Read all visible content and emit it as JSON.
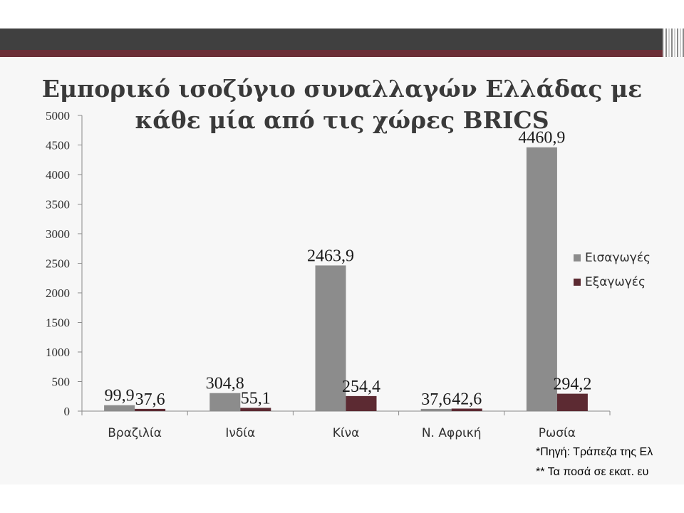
{
  "slide": {
    "title_line1": "Εμπορικό ισοζύγιο συναλλαγών  Ελλάδας με",
    "title_line2": "κάθε μία από τις χώρες BRICS",
    "footnote1": "*Πηγή: Τράπεζα της Ελ",
    "footnote2": "** Τα ποσά σε εκατ. ευ"
  },
  "colors": {
    "imports": "#8c8c8c",
    "exports": "#5c2a32",
    "axis": "#8a8a8a"
  },
  "chart_data": {
    "type": "bar",
    "categories": [
      "Βραζιλία",
      "Ινδία",
      "Κίνα",
      "Ν. Αφρική",
      "Ρωσία"
    ],
    "series": [
      {
        "name": "Εισαγωγές",
        "values": [
          99.9,
          304.8,
          2463.9,
          37.6,
          4460.9
        ],
        "labels": [
          "99,9",
          "304,8",
          "2463,9",
          "37,6",
          "4460,9"
        ]
      },
      {
        "name": "Εξαγωγές",
        "values": [
          37.6,
          55.1,
          254.4,
          42.6,
          294.2
        ],
        "labels": [
          "37,6",
          "55,1",
          "254,4",
          "42,6",
          "294,2"
        ]
      }
    ],
    "yticks": [
      0,
      500,
      1000,
      1500,
      2000,
      2500,
      3000,
      3500,
      4000,
      4500,
      5000
    ],
    "ylim": [
      0,
      5000
    ],
    "legend_position": "right",
    "grid": false
  }
}
